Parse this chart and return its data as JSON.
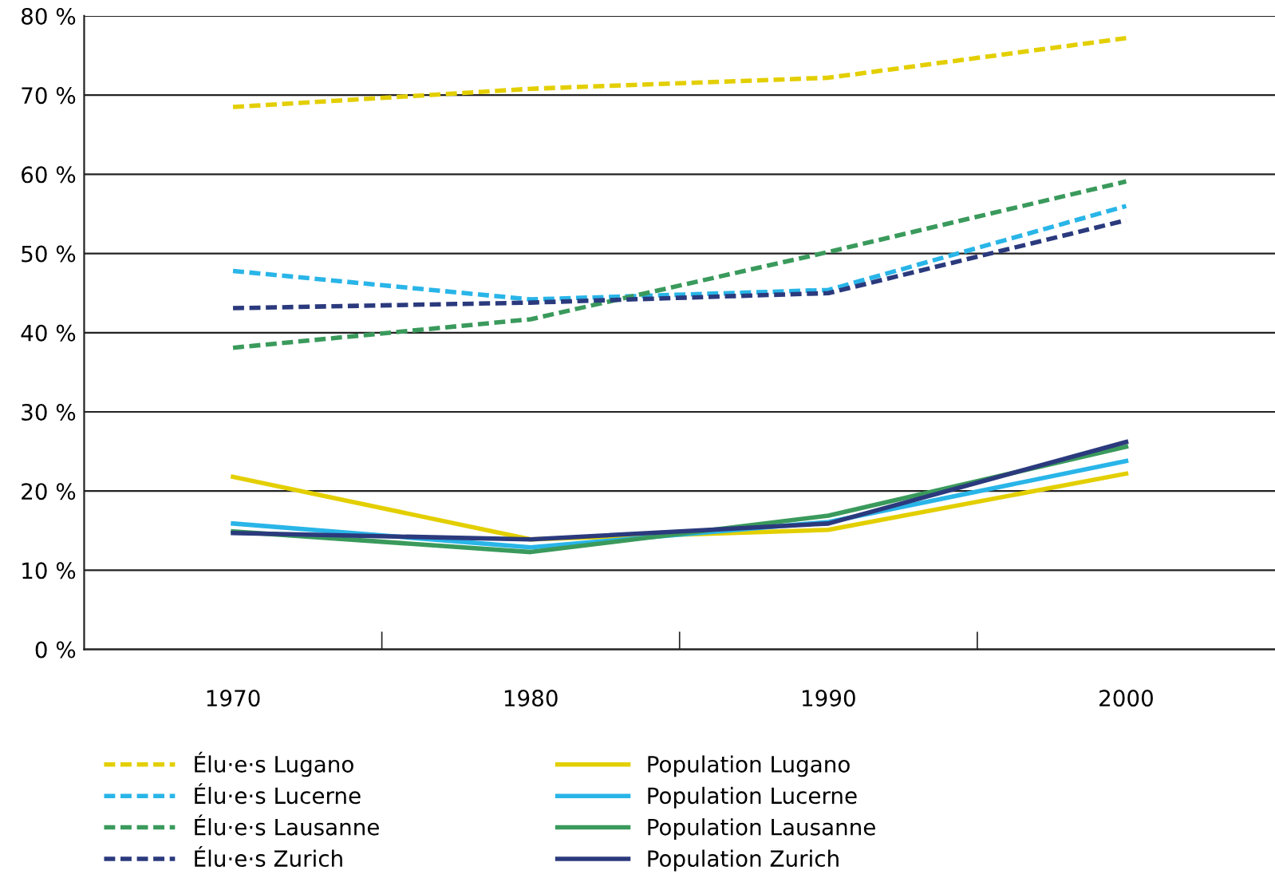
{
  "chart_data": {
    "type": "line",
    "categories": [
      "1970",
      "1980",
      "1990",
      "2000"
    ],
    "ylim": [
      0,
      80
    ],
    "yticks": [
      {
        "value": 0,
        "label": "0 %"
      },
      {
        "value": 10,
        "label": "10 %"
      },
      {
        "value": 20,
        "label": "20 %"
      },
      {
        "value": 30,
        "label": "30 %"
      },
      {
        "value": 40,
        "label": "40 %"
      },
      {
        "value": 50,
        "label": "50 %"
      },
      {
        "value": 60,
        "label": "60 %"
      },
      {
        "value": 70,
        "label": "70 %"
      },
      {
        "value": 80,
        "label": "80 %"
      }
    ],
    "grid": "y",
    "legend": "bottom",
    "marker": "none",
    "series": [
      {
        "name": "Élu·e·s Lugano",
        "color": "#e3cf00",
        "line_style": "dashed",
        "values": [
          68.5,
          70.8,
          72.2,
          77.2
        ]
      },
      {
        "name": "Élu·e·s Lucerne",
        "color": "#29b5e8",
        "line_style": "dashed",
        "values": [
          47.8,
          44.2,
          45.4,
          56.0
        ]
      },
      {
        "name": "Élu·e·s Lausanne",
        "color": "#3a9a5c",
        "line_style": "dashed",
        "values": [
          38.1,
          41.7,
          50.2,
          59.1
        ]
      },
      {
        "name": "Élu·e·s Zurich",
        "color": "#2b3a7d",
        "line_style": "dashed",
        "values": [
          43.1,
          43.8,
          45.0,
          54.2
        ]
      },
      {
        "name": "Population Lugano",
        "color": "#e3cf00",
        "line_style": "solid",
        "values": [
          21.8,
          13.9,
          15.1,
          22.2
        ]
      },
      {
        "name": "Population Lucerne",
        "color": "#29b5e8",
        "line_style": "solid",
        "values": [
          15.9,
          12.9,
          16.1,
          23.8
        ]
      },
      {
        "name": "Population Lausanne",
        "color": "#3a9a5c",
        "line_style": "solid",
        "values": [
          14.9,
          12.3,
          16.9,
          25.6
        ]
      },
      {
        "name": "Population Zurich",
        "color": "#2b3a7d",
        "line_style": "solid",
        "values": [
          14.7,
          13.9,
          15.9,
          26.2
        ]
      }
    ]
  }
}
